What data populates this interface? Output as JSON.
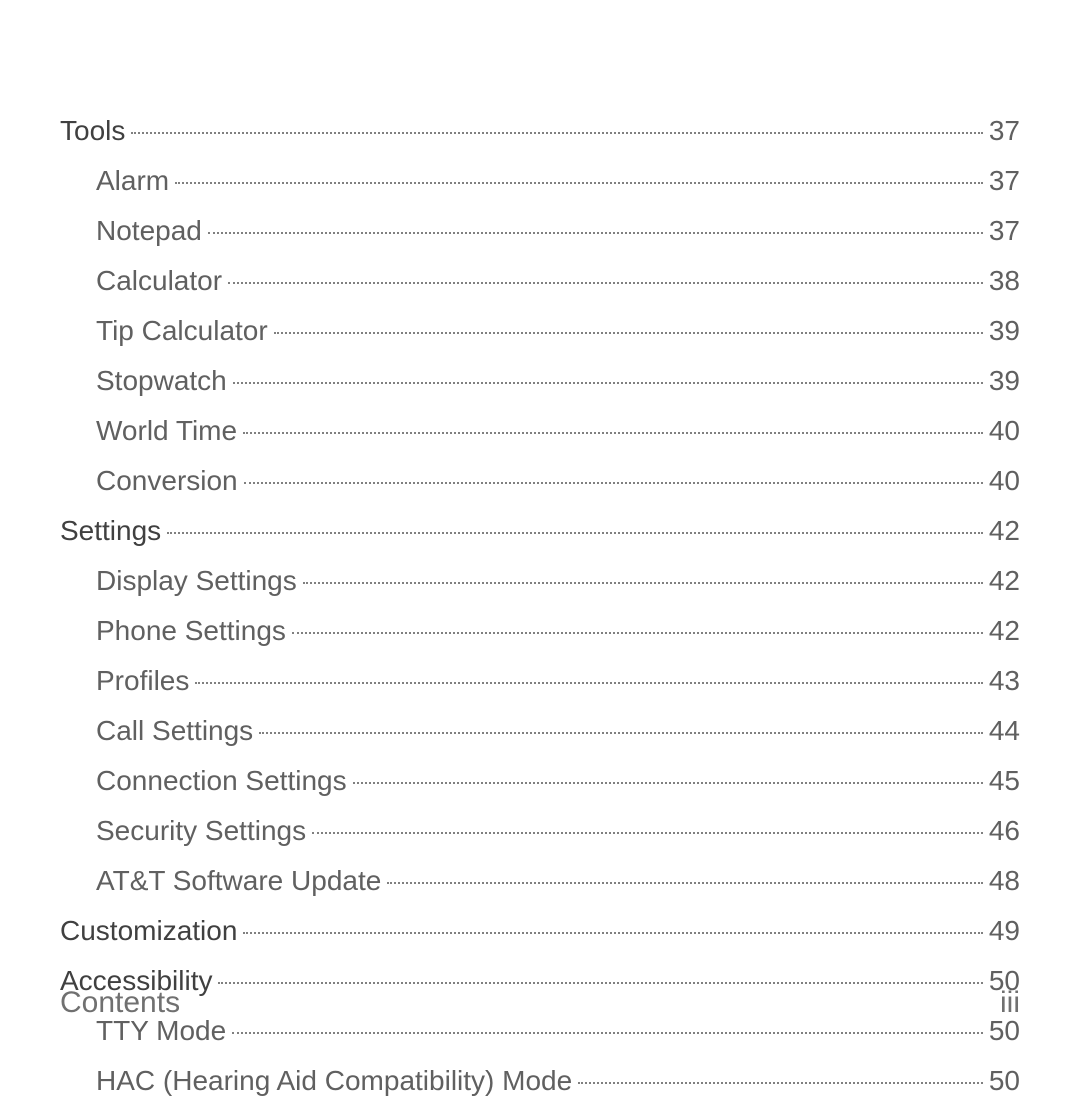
{
  "toc": [
    {
      "label": "Tools",
      "page": "37",
      "level": "section"
    },
    {
      "label": "Alarm",
      "page": "37",
      "level": "sub"
    },
    {
      "label": "Notepad",
      "page": "37",
      "level": "sub"
    },
    {
      "label": "Calculator",
      "page": "38",
      "level": "sub"
    },
    {
      "label": "Tip Calculator",
      "page": "39",
      "level": "sub"
    },
    {
      "label": "Stopwatch",
      "page": "39",
      "level": "sub"
    },
    {
      "label": "World Time",
      "page": "40",
      "level": "sub"
    },
    {
      "label": "Conversion",
      "page": "40",
      "level": "sub"
    },
    {
      "label": "Settings",
      "page": "42",
      "level": "section"
    },
    {
      "label": "Display Settings",
      "page": "42",
      "level": "sub"
    },
    {
      "label": "Phone Settings",
      "page": "42",
      "level": "sub"
    },
    {
      "label": "Profiles",
      "page": "43",
      "level": "sub"
    },
    {
      "label": "Call Settings",
      "page": "44",
      "level": "sub"
    },
    {
      "label": "Connection Settings",
      "page": "45",
      "level": "sub"
    },
    {
      "label": "Security Settings",
      "page": "46",
      "level": "sub"
    },
    {
      "label": "AT&T Software Update",
      "page": "48",
      "level": "sub"
    },
    {
      "label": "Customization",
      "page": "49",
      "level": "section"
    },
    {
      "label": "Accessibility",
      "page": "50",
      "level": "section"
    },
    {
      "label": "TTY Mode",
      "page": "50",
      "level": "sub"
    },
    {
      "label": "HAC (Hearing Aid Compatibility) Mode",
      "page": "50",
      "level": "sub"
    }
  ],
  "footer": {
    "left": "Contents",
    "right": "iii"
  }
}
